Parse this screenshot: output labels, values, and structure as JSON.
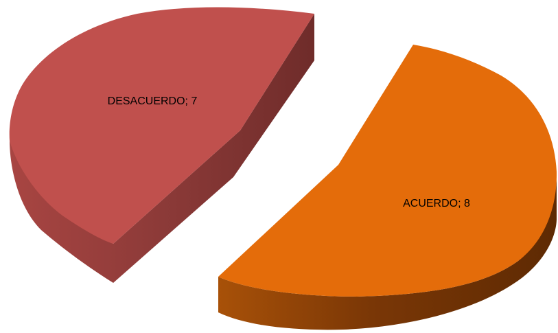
{
  "chart_data": {
    "type": "pie",
    "style": "3d-exploded",
    "title": "",
    "slices": [
      {
        "label": "DESACUERDO",
        "value": 7,
        "display": "DESACUERDO; 7",
        "color_top": "#c0504d",
        "color_side": "#8c3a38"
      },
      {
        "label": "ACUERDO",
        "value": 8,
        "display": "ACUERDO; 8",
        "color_top": "#e46c0a",
        "color_side": "#8a3f05"
      }
    ],
    "legend": "none"
  }
}
